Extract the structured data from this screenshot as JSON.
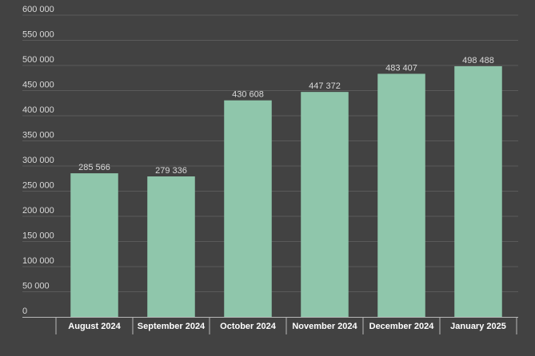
{
  "chart_data": {
    "type": "bar",
    "title": "",
    "xlabel": "",
    "ylabel": "",
    "categories": [
      "August 2024",
      "September 2024",
      "October 2024",
      "November 2024",
      "December 2024",
      "January 2025"
    ],
    "values": [
      285566,
      279336,
      430608,
      447372,
      483407,
      498488
    ],
    "value_labels": [
      "285 566",
      "279 336",
      "430 608",
      "447 372",
      "483 407",
      "498 488"
    ],
    "ylim": [
      0,
      600000
    ],
    "yticks": [
      0,
      50000,
      100000,
      150000,
      200000,
      250000,
      300000,
      350000,
      400000,
      450000,
      500000,
      550000,
      600000
    ],
    "ytick_labels": [
      "0",
      "50 000",
      "100 000",
      "150 000",
      "200 000",
      "250 000",
      "300 000",
      "350 000",
      "400 000",
      "450 000",
      "500 000",
      "550 000",
      "600 000"
    ],
    "grid": true,
    "legend": "none",
    "colors": {
      "bar": "#8fc6ab",
      "background": "#424242"
    }
  }
}
